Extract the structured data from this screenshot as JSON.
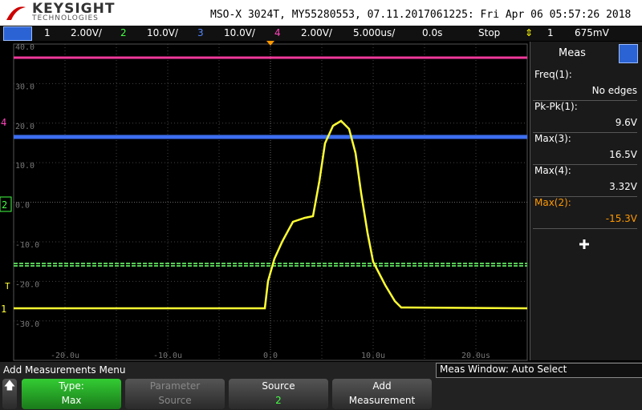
{
  "header": {
    "brand": "KEYSIGHT",
    "brand_sub": "TECHNOLOGIES",
    "title": "MSO-X 3024T, MY55280553, 07.11.2017061225: Fri Apr 06 05:57:26 2018"
  },
  "channel_bar": {
    "ch1": "1",
    "ch1_scale": "2.00V/",
    "ch2": "2",
    "ch2_scale": "10.0V/",
    "ch3": "3",
    "ch3_scale": "10.0V/",
    "ch4": "4",
    "ch4_scale": "2.00V/",
    "timebase": "5.000us/",
    "delay": "0.0s",
    "run_state": "Stop",
    "trigger_source": "1",
    "trigger_level": "675mV"
  },
  "graticule": {
    "y_labels": [
      "40.0",
      "30.0",
      "20.0",
      "10.0",
      "0.0",
      "-10.0",
      "-20.0",
      "-30.0"
    ],
    "x_labels": [
      "-20.0u",
      "-10.0u",
      "0.0",
      "10.0u",
      "20.0us"
    ],
    "markers": {
      "ch4": "4",
      "ch2": "2",
      "trigger": "T",
      "ch1": "1"
    }
  },
  "meas_panel": {
    "title": "Meas",
    "items": [
      {
        "label": "Freq(1):",
        "value": "No edges"
      },
      {
        "label": "Pk-Pk(1):",
        "value": "9.6V"
      },
      {
        "label": "Max(3):",
        "value": "16.5V"
      },
      {
        "label": "Max(4):",
        "value": "3.32V"
      },
      {
        "label": "Max(2):",
        "value": "-15.3V"
      }
    ]
  },
  "footer": {
    "menu_title": "Add Measurements Menu",
    "meas_window": "Meas Window: Auto Select",
    "softkeys": [
      {
        "top": "Type:",
        "bottom": "Max"
      },
      {
        "top": "Parameter",
        "bottom": "Source"
      },
      {
        "top": "Source",
        "bottom": "2"
      },
      {
        "top": "Add",
        "bottom": "Measurement"
      }
    ]
  }
}
